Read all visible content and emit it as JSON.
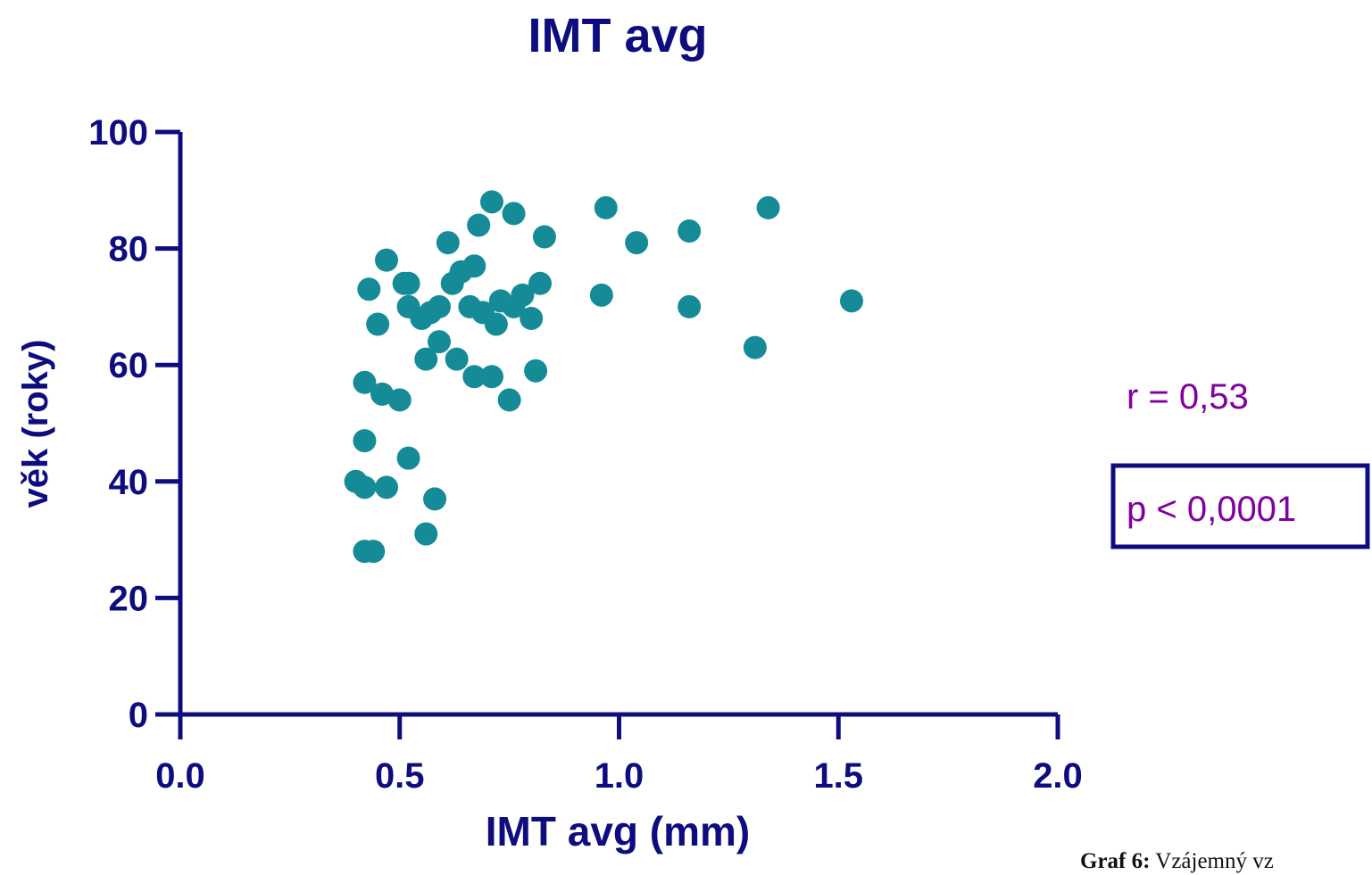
{
  "chart_data": {
    "type": "scatter",
    "title": "IMT avg",
    "xlabel": "IMT avg (mm)",
    "ylabel": "věk (roky)",
    "xlim": [
      0,
      2
    ],
    "ylim": [
      0,
      100
    ],
    "x_ticks": [
      "0.0",
      "0.5",
      "1.0",
      "1.5",
      "2.0"
    ],
    "y_ticks": [
      "0",
      "20",
      "40",
      "60",
      "80",
      "100"
    ],
    "grid": false,
    "points": [
      {
        "x": 0.4,
        "y": 40
      },
      {
        "x": 0.42,
        "y": 57
      },
      {
        "x": 0.42,
        "y": 47
      },
      {
        "x": 0.42,
        "y": 39
      },
      {
        "x": 0.42,
        "y": 28
      },
      {
        "x": 0.44,
        "y": 28
      },
      {
        "x": 0.43,
        "y": 73
      },
      {
        "x": 0.45,
        "y": 67
      },
      {
        "x": 0.46,
        "y": 55
      },
      {
        "x": 0.47,
        "y": 78
      },
      {
        "x": 0.47,
        "y": 39
      },
      {
        "x": 0.5,
        "y": 54
      },
      {
        "x": 0.51,
        "y": 74
      },
      {
        "x": 0.52,
        "y": 74
      },
      {
        "x": 0.52,
        "y": 70
      },
      {
        "x": 0.52,
        "y": 44
      },
      {
        "x": 0.55,
        "y": 68
      },
      {
        "x": 0.56,
        "y": 61
      },
      {
        "x": 0.56,
        "y": 31
      },
      {
        "x": 0.57,
        "y": 69
      },
      {
        "x": 0.58,
        "y": 37
      },
      {
        "x": 0.59,
        "y": 70
      },
      {
        "x": 0.59,
        "y": 64
      },
      {
        "x": 0.61,
        "y": 81
      },
      {
        "x": 0.62,
        "y": 74
      },
      {
        "x": 0.63,
        "y": 61
      },
      {
        "x": 0.64,
        "y": 76
      },
      {
        "x": 0.66,
        "y": 70
      },
      {
        "x": 0.67,
        "y": 77
      },
      {
        "x": 0.67,
        "y": 58
      },
      {
        "x": 0.68,
        "y": 84
      },
      {
        "x": 0.69,
        "y": 69
      },
      {
        "x": 0.71,
        "y": 88
      },
      {
        "x": 0.71,
        "y": 58
      },
      {
        "x": 0.72,
        "y": 67
      },
      {
        "x": 0.73,
        "y": 71
      },
      {
        "x": 0.75,
        "y": 54
      },
      {
        "x": 0.76,
        "y": 86
      },
      {
        "x": 0.76,
        "y": 70
      },
      {
        "x": 0.78,
        "y": 72
      },
      {
        "x": 0.8,
        "y": 68
      },
      {
        "x": 0.81,
        "y": 59
      },
      {
        "x": 0.82,
        "y": 74
      },
      {
        "x": 0.83,
        "y": 82
      },
      {
        "x": 0.96,
        "y": 72
      },
      {
        "x": 0.97,
        "y": 87
      },
      {
        "x": 1.04,
        "y": 81
      },
      {
        "x": 1.16,
        "y": 83
      },
      {
        "x": 1.16,
        "y": 70
      },
      {
        "x": 1.31,
        "y": 63
      },
      {
        "x": 1.34,
        "y": 87
      },
      {
        "x": 1.53,
        "y": 71
      }
    ],
    "annotations": {
      "r": "r = 0,53",
      "p": "p < 0,0001"
    },
    "caption_label": "Graf 6:",
    "caption_text": "Vzájemný vz"
  },
  "colors": {
    "axis": "#0d0d80",
    "point": "#168b98",
    "annotation": "#8000a0"
  }
}
